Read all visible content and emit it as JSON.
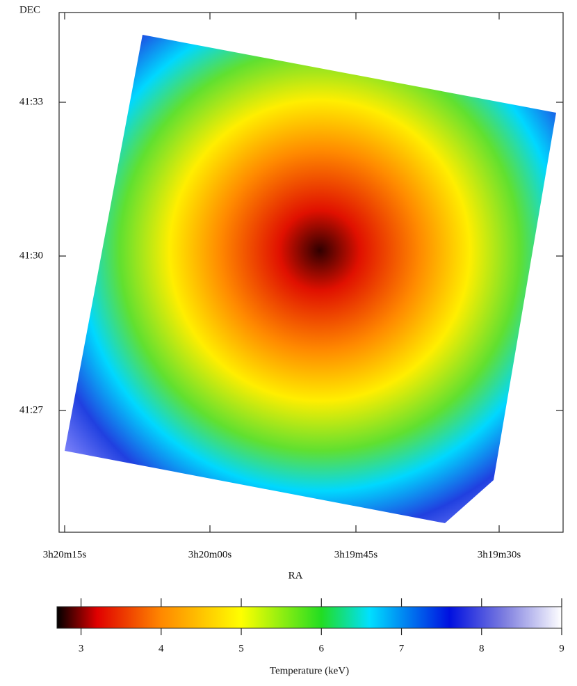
{
  "chart_data": {
    "type": "heatmap",
    "xlabel": "RA",
    "ylabel": "DEC",
    "xticks": [
      "3h20m15s",
      "3h20m00s",
      "3h19m45s",
      "3h19m30s"
    ],
    "yticks": [
      "41:33",
      "41:30",
      "41:27"
    ],
    "colorbar": {
      "label": "Temperature (keV)",
      "lim": [
        2.7,
        9
      ],
      "ticks": [
        3,
        4,
        5,
        6,
        7,
        8,
        9
      ],
      "colormap": [
        {
          "value": 2.7,
          "color": "#000000"
        },
        {
          "value": 3.2,
          "color": "#e00000"
        },
        {
          "value": 4,
          "color": "#ff8800"
        },
        {
          "value": 5,
          "color": "#ffff00"
        },
        {
          "value": 6,
          "color": "#22dd22"
        },
        {
          "value": 6.6,
          "color": "#00e0ff"
        },
        {
          "value": 7.6,
          "color": "#0010e0"
        },
        {
          "value": 8.3,
          "color": "#8080e0"
        },
        {
          "value": 9,
          "color": "#ffffff"
        }
      ]
    }
  }
}
